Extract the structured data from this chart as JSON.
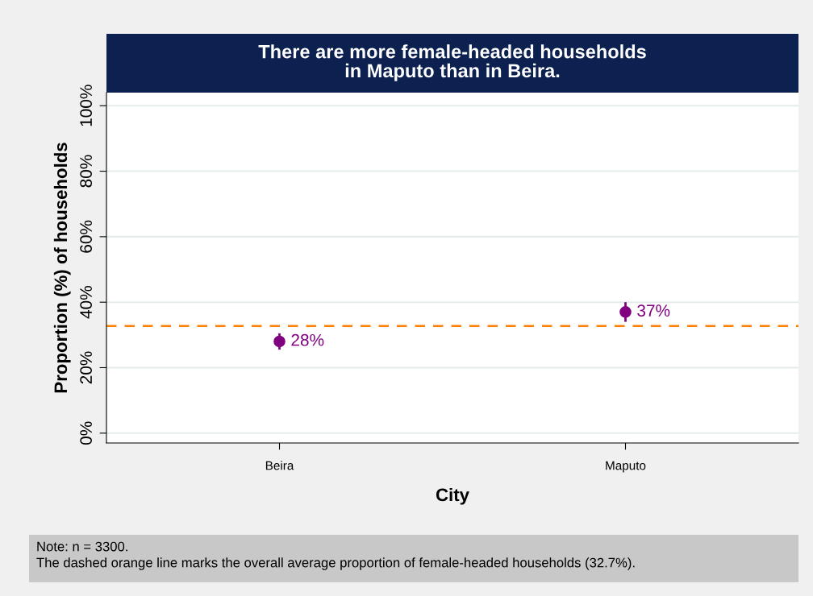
{
  "chart_data": {
    "type": "scatter",
    "title": "There are more female-headed households\nin Maputo than in Beira.",
    "xlabel": "City",
    "ylabel": "Proportion (%) of households",
    "categories": [
      "Beira",
      "Maputo"
    ],
    "series": [
      {
        "color": "#800080",
        "values": [
          28,
          37
        ],
        "errors": [
          2.5,
          3
        ],
        "value_labels": [
          "28%",
          "37%"
        ]
      }
    ],
    "ylim": [
      -3,
      104
    ],
    "yticks": [
      {
        "value": 0,
        "label": "0%"
      },
      {
        "value": 20,
        "label": "20%"
      },
      {
        "value": 40,
        "label": "40%"
      },
      {
        "value": 60,
        "label": "60%"
      },
      {
        "value": 80,
        "label": "80%"
      },
      {
        "value": 100,
        "label": "100%"
      }
    ],
    "ref_lines": [
      {
        "axis": "y",
        "value": 32.7,
        "color": "#ff7f00",
        "line_style": "dashed"
      }
    ],
    "grid": "y",
    "marker": "circle",
    "annotations": [
      "Note: n = 3300.",
      "The dashed orange line marks the overall average proportion of female-headed households (32.7%)."
    ]
  }
}
